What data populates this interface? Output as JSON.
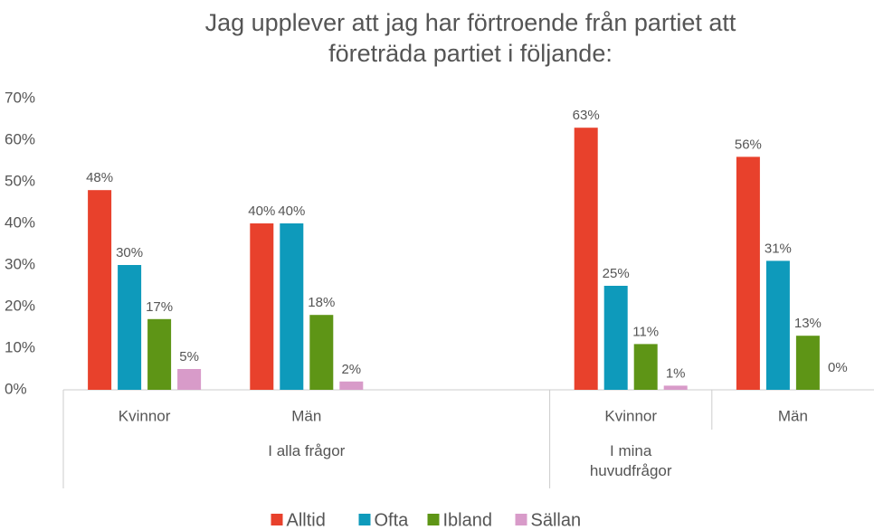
{
  "chart_data": {
    "type": "bar",
    "title": "Jag upplever att jag har förtroende från partiet att företräda partiet i följande:",
    "categories": [
      "Kvinnor",
      "Män",
      null,
      "Kvinnor",
      "Män"
    ],
    "parent_categories": [
      "I alla frågor",
      "I alla frågor",
      "I alla frågor",
      "I mina huvudfrågor",
      null
    ],
    "series": [
      {
        "name": "Alltid",
        "color": "#e8412c",
        "values": [
          48,
          40,
          null,
          63,
          56
        ],
        "value_labels": [
          "48%",
          "40%",
          null,
          "63%",
          "56%"
        ]
      },
      {
        "name": "Ofta",
        "color": "#0e9abb",
        "values": [
          30,
          40,
          null,
          25,
          31
        ],
        "value_labels": [
          "30%",
          "40%",
          null,
          "25%",
          "31%"
        ]
      },
      {
        "name": "Ibland",
        "color": "#5e9516",
        "values": [
          17,
          18,
          null,
          11,
          13
        ],
        "value_labels": [
          "17%",
          "18%",
          null,
          "11%",
          "13%"
        ]
      },
      {
        "name": "Sällan",
        "color": "#d89bc9",
        "values": [
          5,
          2,
          null,
          1,
          0
        ],
        "value_labels": [
          "5%",
          "2%",
          null,
          "1%",
          "0%"
        ]
      }
    ],
    "ylim": [
      0,
      70
    ],
    "yticks": [
      {
        "value": 0,
        "label": "0%"
      },
      {
        "value": 10,
        "label": "10%"
      },
      {
        "value": 20,
        "label": "20%"
      },
      {
        "value": 30,
        "label": "30%"
      },
      {
        "value": 40,
        "label": "40%"
      },
      {
        "value": 50,
        "label": "50%"
      },
      {
        "value": 60,
        "label": "60%"
      },
      {
        "value": 70,
        "label": "70%"
      }
    ],
    "grid": false,
    "legend": "bottom"
  }
}
